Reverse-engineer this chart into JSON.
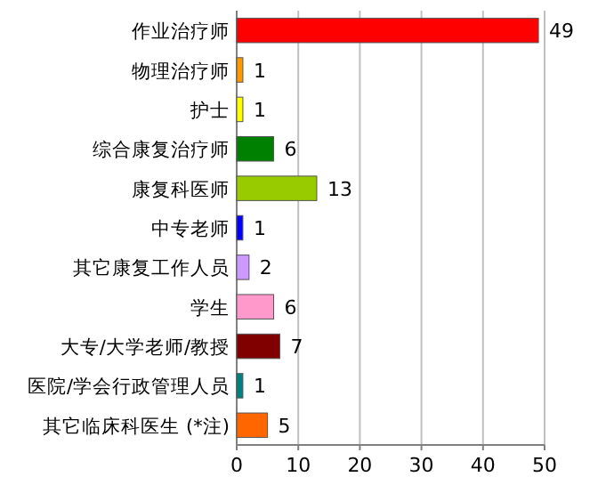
{
  "chart_data": {
    "type": "bar",
    "orientation": "horizontal",
    "categories": [
      "作业治疗师",
      "物理治疗师",
      "护士",
      "综合康复治疗师",
      "康复科医师",
      "中专老师",
      "其它康复工作人员",
      "学生",
      "大专/大学老师/教授",
      "医院/学会行政管理人员",
      "其它临床科医生 (*注)"
    ],
    "values": [
      49,
      1,
      1,
      6,
      13,
      1,
      2,
      6,
      7,
      1,
      5
    ],
    "colors": [
      "#ff0000",
      "#ff9900",
      "#ffff00",
      "#008000",
      "#99cc00",
      "#0000ff",
      "#cc99ff",
      "#ff99cc",
      "#800000",
      "#008080",
      "#ff6600"
    ],
    "xlim": [
      0,
      50
    ],
    "xticks": [
      0,
      10,
      20,
      30,
      40,
      50
    ],
    "grid": "x",
    "data_labels": true
  }
}
